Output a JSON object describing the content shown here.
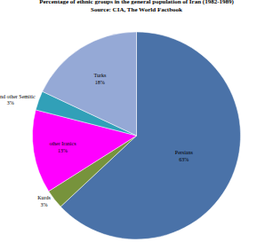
{
  "chart_data": {
    "type": "pie",
    "title": "Percentage of ethnic groups in the general population of Iran (1982-1989)",
    "subtitle": "Source: CIA, The World Factbook",
    "categories": [
      "Persians",
      "Kurds",
      "other Iranics",
      "Arab and other Semitic",
      "Turks"
    ],
    "values": [
      63,
      3,
      13,
      3,
      18
    ],
    "value_labels": [
      "63%",
      "3%",
      "13%",
      "3%",
      "18%"
    ],
    "colors": [
      "#4a72a8",
      "#77933c",
      "#ff00ff",
      "#31a0b8",
      "#95a9d6"
    ],
    "data_labels": true
  }
}
